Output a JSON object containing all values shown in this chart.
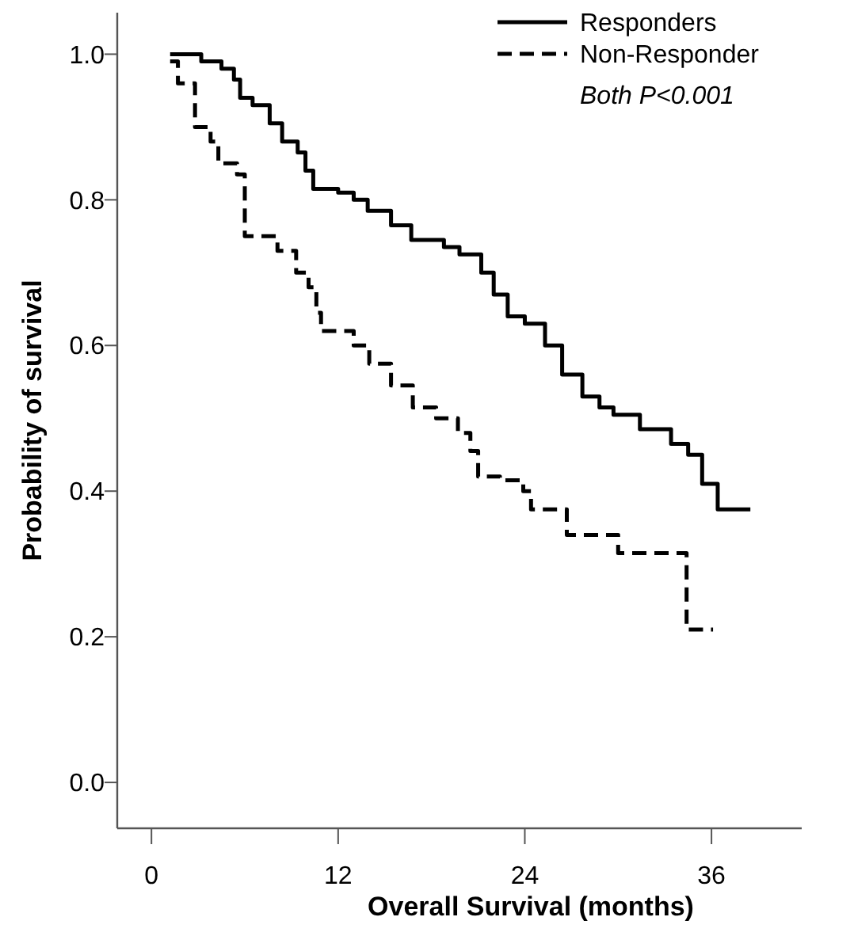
{
  "chart_data": {
    "type": "step",
    "xlabel": "Overall Survival (months)",
    "ylabel": "Probability of survival",
    "xlim": [
      -2.2,
      41.8
    ],
    "ylim": [
      -0.063,
      1.057
    ],
    "xticks": [
      0,
      12,
      24,
      36
    ],
    "yticks": [
      {
        "value": 0,
        "label": "0.0"
      },
      {
        "value": 0.2,
        "label": "0.2"
      },
      {
        "value": 0.4,
        "label": "0.4"
      },
      {
        "value": 0.6,
        "label": "0.6"
      },
      {
        "value": 0.8,
        "label": "0.8"
      },
      {
        "value": 1,
        "label": "1.0"
      }
    ],
    "legend": "top right",
    "grid": false,
    "annotations": [
      "Both P<0.001"
    ],
    "series": [
      {
        "name": "Responders",
        "color": "#000000",
        "line_style": "solid",
        "x": [
          1.2,
          3.2,
          4.5,
          5.3,
          5.7,
          6.5,
          7.6,
          8.4,
          9.4,
          9.9,
          10.4,
          12,
          13,
          13.9,
          15.4,
          16.7,
          18.8,
          19.8,
          21.2,
          22,
          22.9,
          24,
          25.3,
          26.4,
          27.7,
          28.8,
          29.7,
          31.4,
          33.4,
          34.5,
          35.4,
          36.4,
          38.5
        ],
        "values": [
          1.0,
          0.99,
          0.98,
          0.965,
          0.94,
          0.93,
          0.905,
          0.88,
          0.865,
          0.84,
          0.815,
          0.81,
          0.8,
          0.785,
          0.765,
          0.745,
          0.735,
          0.725,
          0.7,
          0.67,
          0.64,
          0.63,
          0.6,
          0.56,
          0.53,
          0.515,
          0.505,
          0.485,
          0.465,
          0.45,
          0.41,
          0.375,
          0.375
        ]
      },
      {
        "name": "Non-Responder",
        "color": "#000000",
        "line_style": "dashed",
        "x": [
          1.2,
          1.7,
          2.8,
          3.8,
          4.3,
          5.5,
          6.0,
          8.1,
          9.3,
          10.1,
          10.6,
          10.9,
          13,
          14,
          15.4,
          16.8,
          18.3,
          19.7,
          20.5,
          21,
          22.4,
          23.9,
          24.4,
          26.7,
          30,
          34.4,
          36.1
        ],
        "values": [
          0.99,
          0.96,
          0.9,
          0.88,
          0.85,
          0.835,
          0.75,
          0.73,
          0.7,
          0.68,
          0.645,
          0.62,
          0.6,
          0.575,
          0.545,
          0.515,
          0.5,
          0.48,
          0.455,
          0.42,
          0.415,
          0.4,
          0.375,
          0.34,
          0.315,
          0.21,
          0.21
        ]
      }
    ]
  }
}
